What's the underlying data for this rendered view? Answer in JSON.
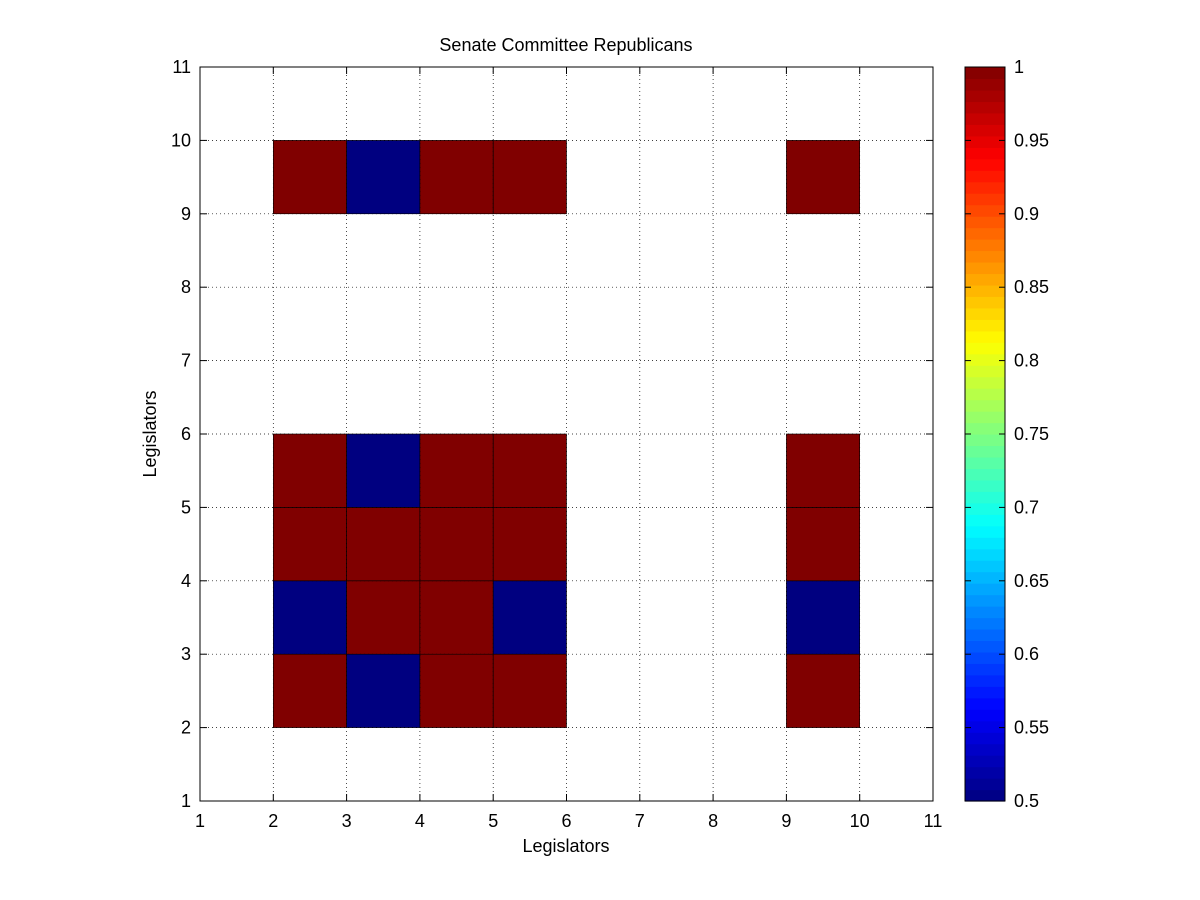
{
  "chart_data": {
    "type": "heatmap",
    "title": "Senate Committee Republicans",
    "xlabel": "Legislators",
    "ylabel": "Legislators",
    "xlim": [
      1,
      11
    ],
    "ylim": [
      1,
      11
    ],
    "x_ticks": [
      "1",
      "2",
      "3",
      "4",
      "5",
      "6",
      "7",
      "8",
      "9",
      "10",
      "11"
    ],
    "y_ticks": [
      "1",
      "2",
      "3",
      "4",
      "5",
      "6",
      "7",
      "8",
      "9",
      "10",
      "11"
    ],
    "grid": true,
    "colormap": "jet",
    "colorbar": {
      "min": 0.5,
      "max": 1,
      "ticks": [
        "0.5",
        "0.55",
        "0.6",
        "0.65",
        "0.7",
        "0.75",
        "0.8",
        "0.85",
        "0.9",
        "0.95",
        "1"
      ],
      "placement": "right"
    },
    "cells": [
      {
        "x": 2,
        "y": 2,
        "value": 1
      },
      {
        "x": 3,
        "y": 2,
        "value": 0.5
      },
      {
        "x": 4,
        "y": 2,
        "value": 1
      },
      {
        "x": 5,
        "y": 2,
        "value": 1
      },
      {
        "x": 9,
        "y": 2,
        "value": 1
      },
      {
        "x": 2,
        "y": 3,
        "value": 0.5
      },
      {
        "x": 3,
        "y": 3,
        "value": 1
      },
      {
        "x": 4,
        "y": 3,
        "value": 1
      },
      {
        "x": 5,
        "y": 3,
        "value": 0.5
      },
      {
        "x": 9,
        "y": 3,
        "value": 0.5
      },
      {
        "x": 2,
        "y": 4,
        "value": 1
      },
      {
        "x": 3,
        "y": 4,
        "value": 1
      },
      {
        "x": 4,
        "y": 4,
        "value": 1
      },
      {
        "x": 5,
        "y": 4,
        "value": 1
      },
      {
        "x": 9,
        "y": 4,
        "value": 1
      },
      {
        "x": 2,
        "y": 5,
        "value": 1
      },
      {
        "x": 3,
        "y": 5,
        "value": 0.5
      },
      {
        "x": 4,
        "y": 5,
        "value": 1
      },
      {
        "x": 5,
        "y": 5,
        "value": 1
      },
      {
        "x": 9,
        "y": 5,
        "value": 1
      },
      {
        "x": 2,
        "y": 9,
        "value": 1
      },
      {
        "x": 3,
        "y": 9,
        "value": 0.5
      },
      {
        "x": 4,
        "y": 9,
        "value": 1
      },
      {
        "x": 5,
        "y": 9,
        "value": 1
      },
      {
        "x": 9,
        "y": 9,
        "value": 1
      }
    ]
  }
}
